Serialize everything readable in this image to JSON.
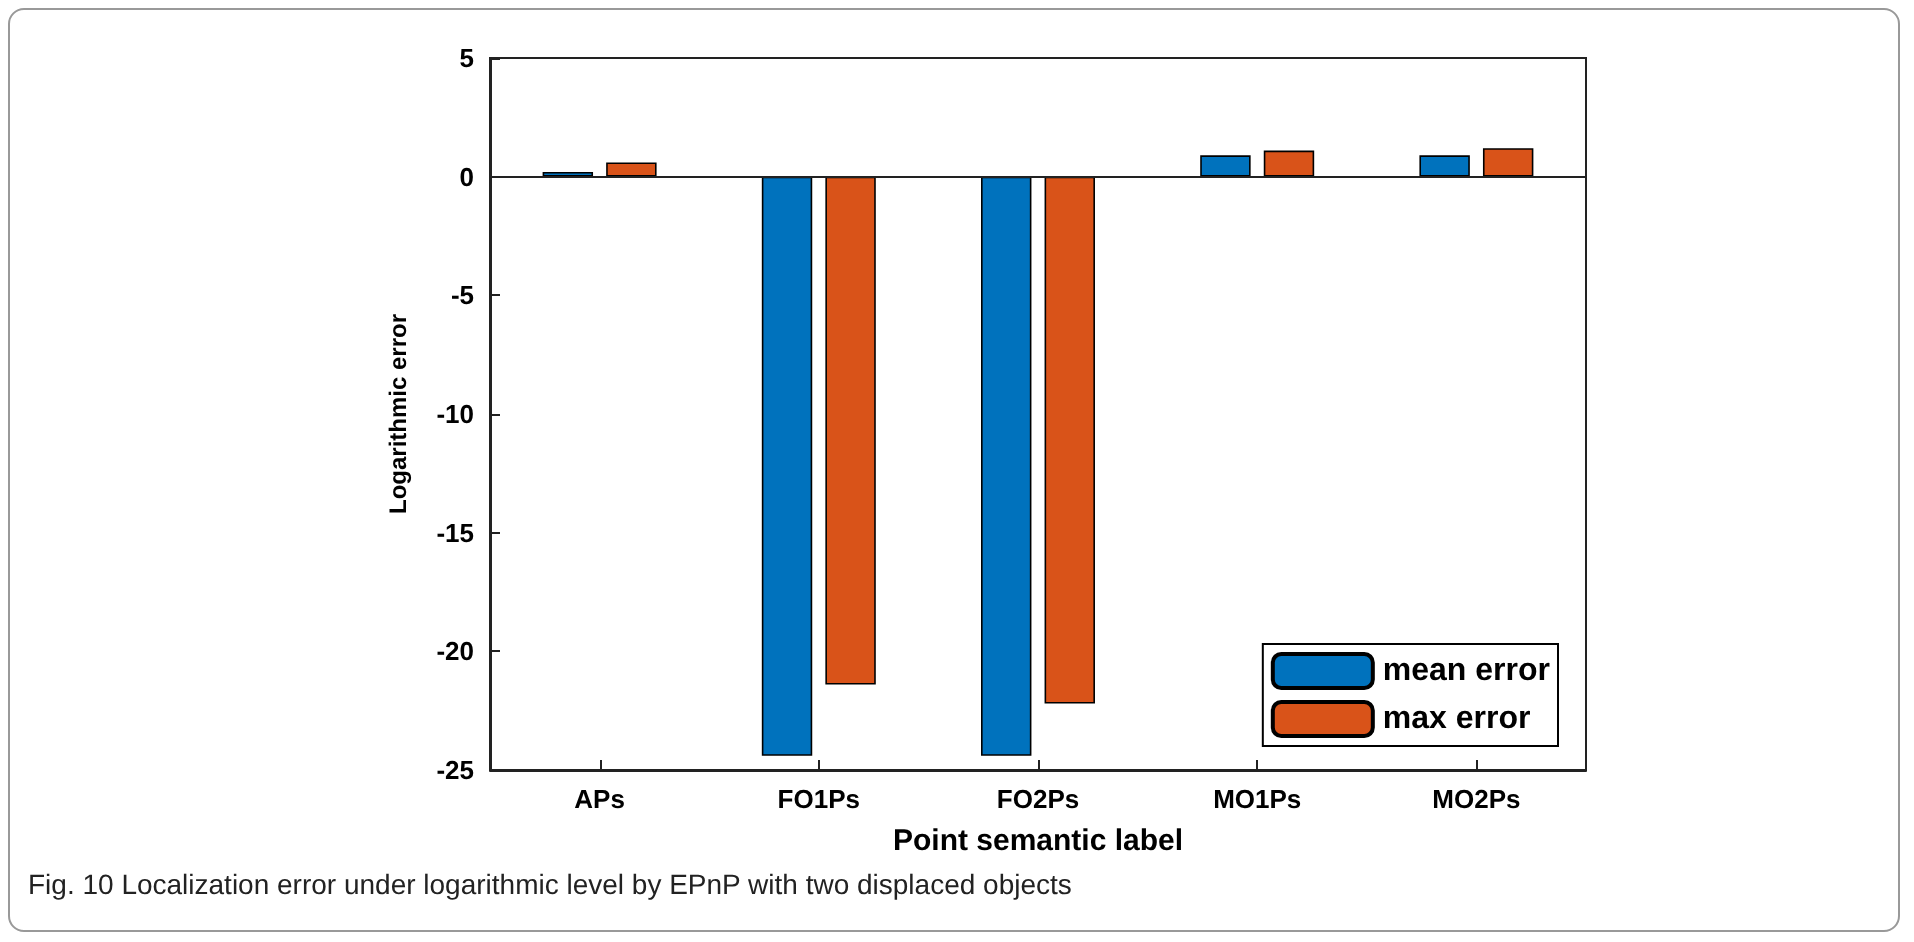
{
  "chart_data": {
    "type": "bar",
    "xlabel": "Point semantic label",
    "ylabel": "Logarithmic error",
    "categories": [
      "APs",
      "FO1Ps",
      "FO2Ps",
      "MO1Ps",
      "MO2Ps"
    ],
    "series": [
      {
        "name": "mean error",
        "color": "#0072bd",
        "values": [
          0.2,
          -24.4,
          -24.4,
          0.9,
          0.9
        ]
      },
      {
        "name": "max error",
        "color": "#d95319",
        "values": [
          0.6,
          -21.4,
          -22.2,
          1.1,
          1.2
        ]
      }
    ],
    "ylim": [
      -25,
      5
    ],
    "yticks": [
      -25,
      -20,
      -15,
      -10,
      -5,
      0,
      5
    ],
    "grid": false,
    "ref_lines": [
      {
        "axis": "y",
        "value": 0
      }
    ],
    "legend": "bottom right",
    "annotations": [
      "Fig. 10  Localization error under logarithmic level by EPnP with two displaced objects"
    ]
  }
}
